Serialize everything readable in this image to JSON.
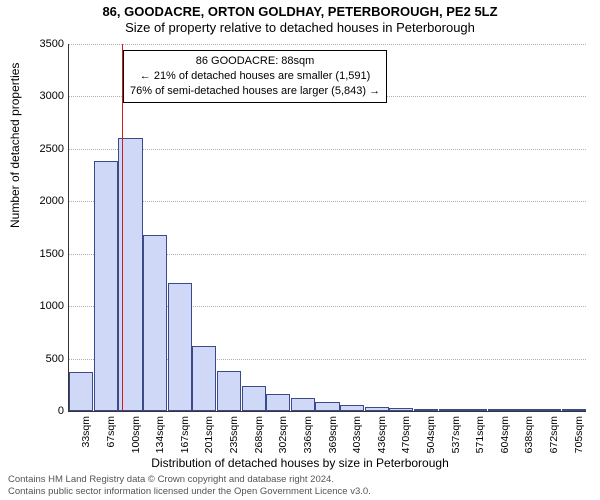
{
  "title_main": "86, GOODACRE, ORTON GOLDHAY, PETERBOROUGH, PE2 5LZ",
  "title_sub": "Size of property relative to detached houses in Peterborough",
  "ylabel": "Number of detached properties",
  "xlabel": "Distribution of detached houses by size in Peterborough",
  "footer_line1": "Contains HM Land Registry data © Crown copyright and database right 2024.",
  "footer_line2": "Contains public sector information licensed under the Open Government Licence v3.0.",
  "y_axis": {
    "min": 0,
    "max": 3500,
    "step": 500
  },
  "x_labels": [
    "33sqm",
    "67sqm",
    "100sqm",
    "134sqm",
    "167sqm",
    "201sqm",
    "235sqm",
    "268sqm",
    "302sqm",
    "336sqm",
    "369sqm",
    "403sqm",
    "436sqm",
    "470sqm",
    "504sqm",
    "537sqm",
    "571sqm",
    "604sqm",
    "638sqm",
    "672sqm",
    "705sqm"
  ],
  "bars": [
    370,
    2380,
    2600,
    1680,
    1220,
    620,
    380,
    240,
    160,
    120,
    90,
    60,
    40,
    25,
    15,
    10,
    8,
    5,
    3,
    2,
    1
  ],
  "bar_fill": "#cfd9f7",
  "bar_stroke": "#3b4a8a",
  "grid_color": "#b0b0b0",
  "marker": {
    "position_index": 1.64,
    "color": "#d01c1c"
  },
  "info_box": {
    "line1": "86 GOODACRE: 88sqm",
    "line2": "← 21% of detached houses are smaller (1,591)",
    "line3": "76% of semi-detached houses are larger (5,843) →"
  }
}
